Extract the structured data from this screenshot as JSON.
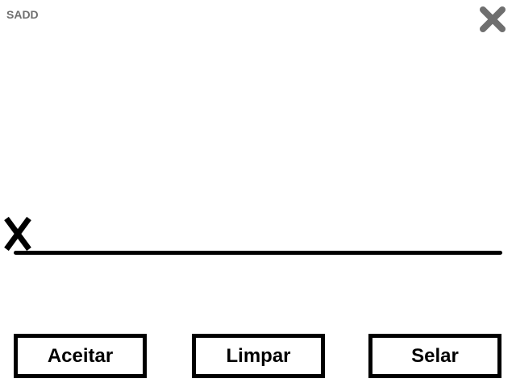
{
  "app": {
    "title": "SADD"
  },
  "window": {
    "close_icon": "close-x-icon",
    "close_icon_color": "#6f6f6f"
  },
  "signature": {
    "mark_icon": "x-mark-icon",
    "line_color": "#000000"
  },
  "actions": {
    "accept_label": "Aceitar",
    "clear_label": "Limpar",
    "seal_label": "Selar"
  }
}
